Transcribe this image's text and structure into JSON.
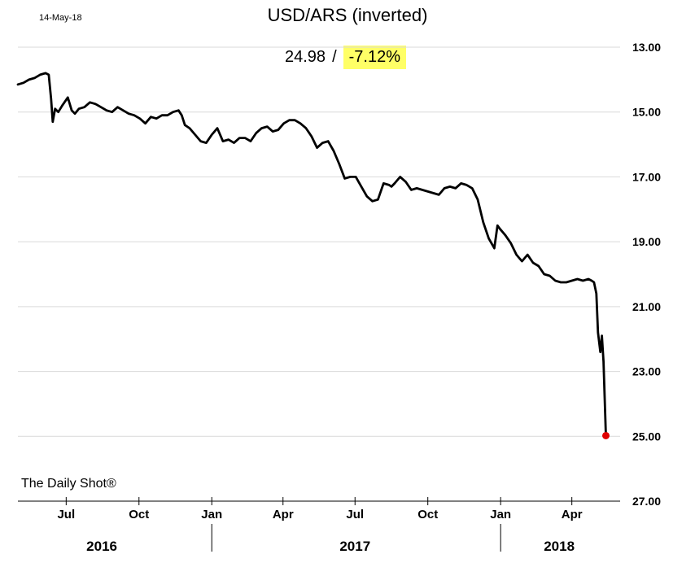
{
  "header": {
    "date": "14-May-18",
    "title": "USD/ARS (inverted)",
    "last_value": "24.98",
    "separator": "/",
    "change": "-7.12%",
    "change_bg": "#ffff66"
  },
  "source": "The Daily Shot®",
  "colors": {
    "line": "#000000",
    "marker": "#e00000",
    "grid": "#d9d9d9"
  },
  "chart_data": {
    "type": "line",
    "title": "USD/ARS (inverted)",
    "y_inverted": true,
    "ylim": [
      13,
      27
    ],
    "yticks": [
      "13.00",
      "15.00",
      "17.00",
      "19.00",
      "21.00",
      "23.00",
      "25.00",
      "27.00"
    ],
    "grid": true,
    "xlim": [
      "2016-05-01",
      "2018-06-01"
    ],
    "month_ticks": [
      {
        "date": "2016-07-01",
        "label": "Jul"
      },
      {
        "date": "2016-10-01",
        "label": "Oct"
      },
      {
        "date": "2017-01-01",
        "label": "Jan"
      },
      {
        "date": "2017-04-01",
        "label": "Apr"
      },
      {
        "date": "2017-07-01",
        "label": "Jul"
      },
      {
        "date": "2017-10-01",
        "label": "Oct"
      },
      {
        "date": "2018-01-01",
        "label": "Jan"
      },
      {
        "date": "2018-04-01",
        "label": "Apr"
      }
    ],
    "year_labels": [
      {
        "label": "2016",
        "center": "2016-08-15"
      },
      {
        "label": "2017",
        "center": "2017-07-01"
      },
      {
        "label": "2018",
        "center": "2018-03-16"
      }
    ],
    "year_dividers": [
      "2017-01-01",
      "2018-01-01"
    ],
    "series": [
      {
        "x": [
          "2016-05-01",
          "2016-05-08",
          "2016-05-15",
          "2016-05-22",
          "2016-05-29",
          "2016-06-05",
          "2016-06-09",
          "2016-06-12",
          "2016-06-14",
          "2016-06-17",
          "2016-06-21",
          "2016-06-26",
          "2016-07-03",
          "2016-07-08",
          "2016-07-12",
          "2016-07-17",
          "2016-07-24",
          "2016-07-31",
          "2016-08-07",
          "2016-08-14",
          "2016-08-21",
          "2016-08-28",
          "2016-09-04",
          "2016-09-11",
          "2016-09-18",
          "2016-09-25",
          "2016-10-02",
          "2016-10-09",
          "2016-10-16",
          "2016-10-23",
          "2016-10-30",
          "2016-11-06",
          "2016-11-13",
          "2016-11-20",
          "2016-11-24",
          "2016-11-28",
          "2016-12-04",
          "2016-12-11",
          "2016-12-18",
          "2016-12-25",
          "2017-01-01",
          "2017-01-08",
          "2017-01-15",
          "2017-01-22",
          "2017-01-29",
          "2017-02-05",
          "2017-02-12",
          "2017-02-19",
          "2017-02-26",
          "2017-03-05",
          "2017-03-12",
          "2017-03-19",
          "2017-03-26",
          "2017-04-02",
          "2017-04-09",
          "2017-04-16",
          "2017-04-23",
          "2017-04-30",
          "2017-05-07",
          "2017-05-14",
          "2017-05-21",
          "2017-05-28",
          "2017-06-04",
          "2017-06-11",
          "2017-06-18",
          "2017-06-25",
          "2017-07-02",
          "2017-07-09",
          "2017-07-16",
          "2017-07-23",
          "2017-07-30",
          "2017-08-06",
          "2017-08-13",
          "2017-08-16",
          "2017-08-20",
          "2017-08-27",
          "2017-09-03",
          "2017-09-10",
          "2017-09-17",
          "2017-09-24",
          "2017-10-01",
          "2017-10-08",
          "2017-10-15",
          "2017-10-22",
          "2017-10-29",
          "2017-11-05",
          "2017-11-12",
          "2017-11-19",
          "2017-11-26",
          "2017-12-03",
          "2017-12-10",
          "2017-12-17",
          "2017-12-24",
          "2017-12-28",
          "2017-12-31",
          "2018-01-07",
          "2018-01-14",
          "2018-01-21",
          "2018-01-28",
          "2018-02-04",
          "2018-02-11",
          "2018-02-18",
          "2018-02-25",
          "2018-03-04",
          "2018-03-11",
          "2018-03-18",
          "2018-03-25",
          "2018-04-01",
          "2018-04-08",
          "2018-04-15",
          "2018-04-22",
          "2018-04-26",
          "2018-04-29",
          "2018-05-02",
          "2018-05-04",
          "2018-05-07",
          "2018-05-09",
          "2018-05-11",
          "2018-05-14"
        ],
        "values": [
          14.15,
          14.1,
          14.0,
          13.95,
          13.85,
          13.8,
          13.85,
          14.6,
          15.3,
          14.9,
          15.0,
          14.8,
          14.55,
          14.95,
          15.05,
          14.9,
          14.85,
          14.7,
          14.75,
          14.85,
          14.95,
          15.0,
          14.85,
          14.95,
          15.05,
          15.1,
          15.2,
          15.35,
          15.15,
          15.2,
          15.1,
          15.1,
          15.0,
          14.95,
          15.1,
          15.4,
          15.5,
          15.7,
          15.9,
          15.95,
          15.7,
          15.5,
          15.9,
          15.85,
          15.95,
          15.8,
          15.8,
          15.9,
          15.65,
          15.5,
          15.45,
          15.6,
          15.55,
          15.35,
          15.25,
          15.25,
          15.35,
          15.5,
          15.75,
          16.1,
          15.95,
          15.9,
          16.2,
          16.6,
          17.05,
          17.0,
          17.0,
          17.3,
          17.6,
          17.75,
          17.7,
          17.2,
          17.25,
          17.3,
          17.2,
          17.0,
          17.15,
          17.4,
          17.35,
          17.4,
          17.45,
          17.5,
          17.55,
          17.35,
          17.3,
          17.35,
          17.2,
          17.25,
          17.35,
          17.7,
          18.4,
          18.9,
          19.2,
          18.5,
          18.6,
          18.8,
          19.05,
          19.4,
          19.6,
          19.4,
          19.65,
          19.75,
          20.0,
          20.05,
          20.2,
          20.25,
          20.25,
          20.2,
          20.15,
          20.2,
          20.15,
          20.2,
          20.25,
          20.6,
          21.8,
          22.4,
          21.9,
          22.7,
          24.98
        ]
      }
    ],
    "last_point": {
      "x": "2018-05-14",
      "value": 24.98
    }
  }
}
